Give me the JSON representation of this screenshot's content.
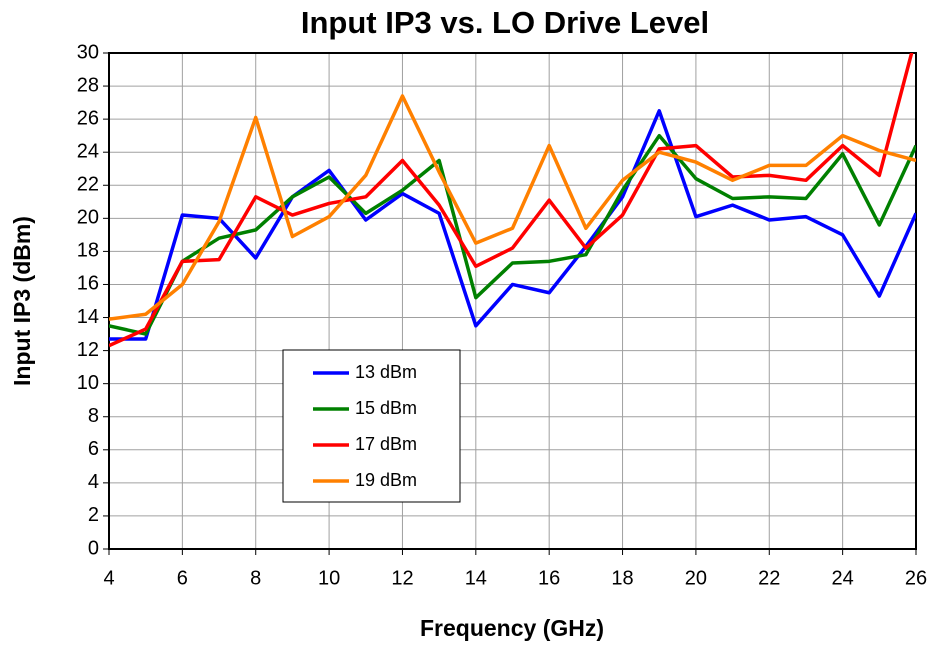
{
  "chart_data": {
    "type": "line",
    "title": "Input IP3 vs. LO Drive Level",
    "x_label": "Frequency (GHz)",
    "y_label": "Input IP3 (dBm)",
    "x": [
      4,
      5,
      6,
      7,
      8,
      9,
      10,
      11,
      12,
      13,
      14,
      15,
      16,
      17,
      18,
      19,
      20,
      21,
      22,
      23,
      24,
      25,
      26
    ],
    "series": [
      {
        "name": "13 dBm",
        "color": "#0000ff",
        "values": [
          12.7,
          12.7,
          20.2,
          20.0,
          17.6,
          21.3,
          22.9,
          19.9,
          21.5,
          20.3,
          13.5,
          16.0,
          15.5,
          18.3,
          21.3,
          26.5,
          20.1,
          20.8,
          19.9,
          20.1,
          19.0,
          15.3,
          20.3
        ]
      },
      {
        "name": "15 dBm",
        "color": "#008000",
        "values": [
          13.5,
          13.0,
          17.4,
          18.8,
          19.3,
          21.3,
          22.5,
          20.3,
          21.7,
          23.5,
          15.2,
          17.3,
          17.4,
          17.8,
          21.7,
          25.0,
          22.4,
          21.2,
          21.3,
          21.2,
          23.9,
          19.6,
          24.4
        ]
      },
      {
        "name": "17 dBm",
        "color": "#ff0000",
        "values": [
          12.3,
          13.3,
          17.4,
          17.5,
          21.3,
          20.2,
          20.9,
          21.3,
          23.5,
          20.8,
          17.1,
          18.2,
          21.1,
          18.2,
          20.2,
          24.2,
          24.4,
          22.5,
          22.6,
          22.3,
          24.4,
          22.6,
          31
        ]
      },
      {
        "name": "19 dBm",
        "color": "#ff8000",
        "values": [
          13.9,
          14.2,
          16.0,
          19.8,
          26.1,
          18.9,
          20.1,
          22.6,
          27.4,
          22.8,
          18.5,
          19.4,
          24.4,
          19.4,
          22.3,
          24.0,
          23.4,
          22.3,
          23.2,
          23.2,
          25.0,
          24.1,
          23.5
        ]
      }
    ],
    "xlim": [
      4,
      26
    ],
    "xticks": [
      4,
      6,
      8,
      10,
      12,
      14,
      16,
      18,
      20,
      22,
      24,
      26
    ],
    "ylim": [
      0,
      30
    ],
    "yticks": [
      0,
      2,
      4,
      6,
      8,
      10,
      12,
      14,
      16,
      18,
      20,
      22,
      24,
      26,
      28,
      30
    ],
    "grid": true,
    "legend_position": "lower left"
  }
}
